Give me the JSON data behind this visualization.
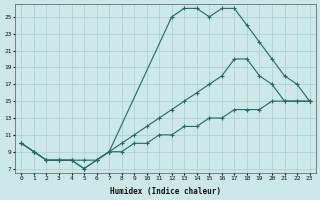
{
  "xlabel": "Humidex (Indice chaleur)",
  "bg_color": "#cce8e8",
  "line_color": "#1e6b6b",
  "grid_color": "#aacfcf",
  "xlim": [
    -0.5,
    23.5
  ],
  "ylim": [
    6.5,
    26.5
  ],
  "xticks": [
    0,
    1,
    2,
    3,
    4,
    5,
    6,
    7,
    8,
    9,
    10,
    11,
    12,
    13,
    14,
    15,
    16,
    17,
    18,
    19,
    20,
    21,
    22,
    23
  ],
  "yticks": [
    7,
    9,
    11,
    13,
    15,
    17,
    19,
    21,
    23,
    25
  ],
  "line1_x": [
    0,
    1,
    2,
    3,
    4,
    5,
    6,
    7,
    12,
    13,
    14,
    15,
    16,
    17,
    18,
    19,
    20,
    21,
    22,
    23
  ],
  "line1_y": [
    10,
    9,
    8,
    8,
    8,
    7,
    8,
    9,
    25,
    26,
    26,
    25,
    26,
    26,
    24,
    22,
    20,
    18,
    17,
    15
  ],
  "line2_x": [
    0,
    1,
    2,
    3,
    4,
    5,
    6,
    7,
    8,
    9,
    10,
    11,
    12,
    13,
    14,
    15,
    16,
    17,
    18,
    19,
    20,
    21,
    22,
    23
  ],
  "line2_y": [
    10,
    9,
    8,
    8,
    8,
    7,
    8,
    9,
    10,
    11,
    12,
    13,
    14,
    15,
    16,
    17,
    18,
    20,
    20,
    18,
    17,
    15,
    15,
    15
  ],
  "line3_x": [
    0,
    1,
    2,
    3,
    4,
    5,
    6,
    7,
    8,
    9,
    10,
    11,
    12,
    13,
    14,
    15,
    16,
    17,
    18,
    19,
    20,
    21,
    22,
    23
  ],
  "line3_y": [
    10,
    9,
    8,
    8,
    8,
    8,
    8,
    9,
    9,
    10,
    10,
    11,
    11,
    12,
    12,
    13,
    13,
    14,
    14,
    14,
    15,
    15,
    15,
    15
  ]
}
